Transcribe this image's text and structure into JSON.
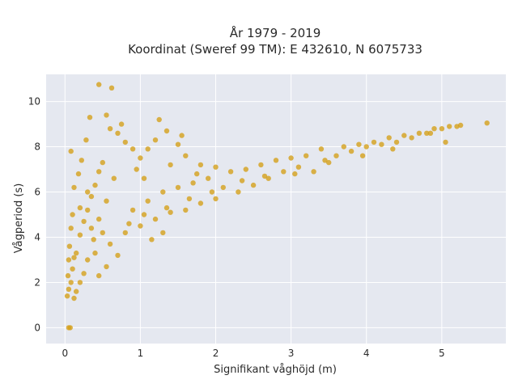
{
  "chart_data": {
    "type": "scatter",
    "title": "År 1979 - 2019",
    "subtitle": "Koordinat (Sweref 99 TM): E 432610, N 6075733",
    "xlabel": "Signifikant våghöjd (m)",
    "ylabel": "Vågperiod (s)",
    "xlim": [
      -0.25,
      5.85
    ],
    "ylim": [
      -0.7,
      11.2
    ],
    "xticks": [
      0,
      1,
      2,
      3,
      4,
      5
    ],
    "xtick_labels": [
      "0",
      "1",
      "2",
      "3",
      "4",
      "5"
    ],
    "yticks": [
      0,
      2,
      4,
      6,
      8,
      10
    ],
    "ytick_labels": [
      "0",
      "2",
      "4",
      "6",
      "8",
      "10"
    ],
    "grid": true,
    "point_color": "#d4a01c",
    "plot_background": "#e5e8f0",
    "series": [
      {
        "values": [
          [
            0.05,
            0.0
          ],
          [
            0.07,
            0.0
          ],
          [
            0.03,
            1.4
          ],
          [
            0.05,
            1.7
          ],
          [
            0.08,
            2.0
          ],
          [
            0.1,
            2.6
          ],
          [
            0.12,
            3.1
          ],
          [
            0.06,
            3.6
          ],
          [
            0.15,
            3.3
          ],
          [
            0.2,
            4.1
          ],
          [
            0.25,
            4.7
          ],
          [
            0.3,
            5.2
          ],
          [
            0.35,
            5.8
          ],
          [
            0.4,
            6.3
          ],
          [
            0.45,
            6.9
          ],
          [
            0.5,
            7.3
          ],
          [
            0.12,
            6.2
          ],
          [
            0.18,
            6.8
          ],
          [
            0.22,
            7.4
          ],
          [
            0.08,
            7.8
          ],
          [
            0.28,
            8.3
          ],
          [
            0.33,
            9.3
          ],
          [
            0.45,
            10.75
          ],
          [
            0.62,
            10.6
          ],
          [
            0.55,
            9.4
          ],
          [
            0.6,
            8.8
          ],
          [
            0.7,
            8.6
          ],
          [
            0.8,
            8.2
          ],
          [
            0.9,
            7.9
          ],
          [
            1.0,
            7.5
          ],
          [
            1.1,
            7.9
          ],
          [
            1.2,
            8.3
          ],
          [
            1.25,
            9.2
          ],
          [
            1.35,
            8.7
          ],
          [
            1.5,
            8.1
          ],
          [
            1.55,
            8.5
          ],
          [
            1.4,
            7.2
          ],
          [
            0.75,
            9.0
          ],
          [
            0.65,
            6.6
          ],
          [
            0.55,
            5.6
          ],
          [
            0.45,
            4.8
          ],
          [
            0.38,
            3.9
          ],
          [
            0.3,
            3.0
          ],
          [
            0.25,
            2.4
          ],
          [
            0.2,
            2.0
          ],
          [
            0.15,
            1.6
          ],
          [
            0.12,
            1.3
          ],
          [
            0.4,
            3.3
          ],
          [
            0.6,
            3.7
          ],
          [
            0.8,
            4.2
          ],
          [
            1.0,
            4.5
          ],
          [
            1.2,
            4.8
          ],
          [
            1.4,
            5.1
          ],
          [
            1.6,
            5.2
          ],
          [
            1.8,
            5.5
          ],
          [
            2.0,
            5.7
          ],
          [
            0.9,
            5.2
          ],
          [
            1.1,
            5.6
          ],
          [
            1.3,
            6.0
          ],
          [
            1.5,
            6.2
          ],
          [
            1.7,
            6.4
          ],
          [
            1.9,
            6.6
          ],
          [
            2.1,
            6.2
          ],
          [
            2.3,
            6.0
          ],
          [
            2.5,
            6.3
          ],
          [
            2.7,
            6.6
          ],
          [
            2.9,
            6.9
          ],
          [
            3.1,
            7.1
          ],
          [
            2.2,
            6.9
          ],
          [
            2.4,
            7.0
          ],
          [
            2.6,
            7.2
          ],
          [
            2.8,
            7.4
          ],
          [
            3.0,
            7.5
          ],
          [
            3.2,
            7.6
          ],
          [
            3.3,
            6.9
          ],
          [
            3.5,
            7.3
          ],
          [
            3.4,
            7.9
          ],
          [
            3.6,
            7.6
          ],
          [
            3.7,
            8.0
          ],
          [
            3.8,
            7.8
          ],
          [
            3.9,
            8.1
          ],
          [
            4.0,
            8.0
          ],
          [
            4.1,
            8.2
          ],
          [
            4.2,
            8.1
          ],
          [
            4.3,
            8.4
          ],
          [
            4.4,
            8.2
          ],
          [
            4.5,
            8.5
          ],
          [
            4.6,
            8.4
          ],
          [
            4.7,
            8.6
          ],
          [
            4.8,
            8.6
          ],
          [
            4.9,
            8.8
          ],
          [
            5.0,
            8.8
          ],
          [
            5.1,
            8.9
          ],
          [
            5.2,
            8.9
          ],
          [
            5.25,
            8.95
          ],
          [
            5.6,
            9.05
          ],
          [
            5.05,
            8.2
          ],
          [
            4.85,
            8.6
          ],
          [
            4.35,
            7.9
          ],
          [
            3.95,
            7.6
          ],
          [
            3.45,
            7.4
          ],
          [
            3.05,
            6.8
          ],
          [
            2.65,
            6.7
          ],
          [
            2.35,
            6.5
          ],
          [
            1.95,
            6.0
          ],
          [
            1.65,
            5.7
          ],
          [
            1.35,
            5.3
          ],
          [
            1.05,
            5.0
          ],
          [
            0.85,
            4.6
          ],
          [
            0.5,
            4.2
          ],
          [
            0.35,
            4.4
          ],
          [
            0.2,
            5.3
          ],
          [
            0.1,
            5.0
          ],
          [
            0.08,
            4.4
          ],
          [
            0.05,
            3.0
          ],
          [
            0.04,
            2.3
          ],
          [
            1.15,
            3.9
          ],
          [
            1.3,
            4.2
          ],
          [
            0.7,
            3.2
          ],
          [
            0.55,
            2.7
          ],
          [
            0.45,
            2.3
          ],
          [
            1.6,
            7.6
          ],
          [
            1.8,
            7.2
          ],
          [
            2.0,
            7.1
          ],
          [
            1.75,
            6.8
          ],
          [
            0.95,
            7.0
          ],
          [
            1.05,
            6.6
          ],
          [
            0.3,
            6.0
          ]
        ]
      }
    ]
  }
}
